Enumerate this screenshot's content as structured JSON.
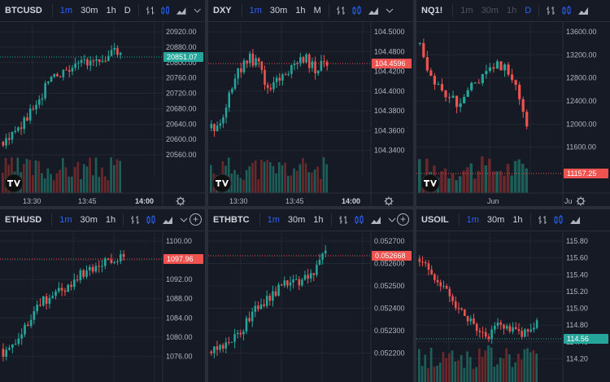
{
  "colors": {
    "up": "#26a69a",
    "down": "#ef5350",
    "upVol": "#1f6b62",
    "downVol": "#7a2c2c",
    "grid": "#232734",
    "bg": "#161a25"
  },
  "panels": [
    {
      "id": "btcusd",
      "symbol": "BTCUSD",
      "timeframes": [
        {
          "label": "1m",
          "state": "active"
        },
        {
          "label": "30m",
          "state": "normal"
        },
        {
          "label": "1h",
          "state": "normal"
        },
        {
          "label": "D",
          "state": "normal"
        }
      ],
      "price_labels": [
        "20920.00",
        "20880.00",
        "20800.00",
        "20760.00",
        "20720.00",
        "20680.00",
        "20640.00",
        "20600.00",
        "20560.00"
      ],
      "last_price": "20851.07",
      "last_color": "up",
      "time_labels": [
        "13:30",
        "13:45",
        "14:00"
      ]
    },
    {
      "id": "dxy",
      "symbol": "DXY",
      "timeframes": [
        {
          "label": "1m",
          "state": "active"
        },
        {
          "label": "30m",
          "state": "normal"
        },
        {
          "label": "1h",
          "state": "normal"
        },
        {
          "label": "M",
          "state": "normal"
        }
      ],
      "price_labels": [
        "104.5000",
        "104.4800",
        "104.4200",
        "104.4000",
        "104.3800",
        "104.3600",
        "104.3400"
      ],
      "last_price": "104.4596",
      "last_color": "down",
      "time_labels": [
        "13:30",
        "13:45",
        "14:00"
      ]
    },
    {
      "id": "nq1",
      "symbol": "NQ1!",
      "timeframes": [
        {
          "label": "1m",
          "state": "dim"
        },
        {
          "label": "30m",
          "state": "dim"
        },
        {
          "label": "1h",
          "state": "dim"
        },
        {
          "label": "D",
          "state": "active"
        }
      ],
      "price_labels": [
        "13600.00",
        "13200.00",
        "12800.00",
        "12400.00",
        "12000.00",
        "11600.00"
      ],
      "last_price": "11157.25",
      "last_color": "down",
      "time_labels": [
        "Jun",
        "Ju"
      ]
    },
    {
      "id": "ethusd",
      "symbol": "ETHUSD",
      "timeframes": [
        {
          "label": "1m",
          "state": "active"
        },
        {
          "label": "30m",
          "state": "normal"
        },
        {
          "label": "1h",
          "state": "normal"
        }
      ],
      "price_labels": [
        "1100.00",
        "1096.00",
        "1092.00",
        "1088.00",
        "1084.00",
        "1080.00",
        "1076.00"
      ],
      "last_price": "1097.96",
      "last_color": "down",
      "time_labels": []
    },
    {
      "id": "ethbtc",
      "symbol": "ETHBTC",
      "timeframes": [
        {
          "label": "1m",
          "state": "active"
        },
        {
          "label": "30m",
          "state": "normal"
        },
        {
          "label": "1h",
          "state": "normal"
        }
      ],
      "price_labels": [
        "0.052700",
        "0.052600",
        "0.052500",
        "0.052400",
        "0.052300",
        "0.052200"
      ],
      "last_price": "0.052668",
      "last_color": "down",
      "time_labels": []
    },
    {
      "id": "usoil",
      "symbol": "USOIL",
      "timeframes": [
        {
          "label": "1m",
          "state": "active"
        },
        {
          "label": "30m",
          "state": "normal"
        },
        {
          "label": "1h",
          "state": "normal"
        }
      ],
      "price_labels": [
        "115.80",
        "115.60",
        "115.40",
        "115.20",
        "115.00",
        "114.80",
        "114.40",
        "114.20"
      ],
      "last_price": "114.56",
      "last_color": "up",
      "time_labels": []
    }
  ]
}
